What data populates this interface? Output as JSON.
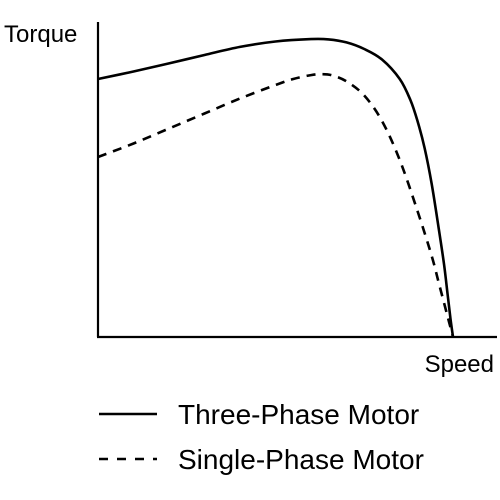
{
  "chart_data": {
    "type": "line",
    "title": "",
    "xlabel": "Speed",
    "ylabel": "Torque",
    "xlim": [
      0,
      100
    ],
    "ylim": [
      0,
      100
    ],
    "grid": false,
    "legend_position": "bottom",
    "series": [
      {
        "name": "Three-Phase Motor",
        "style": "solid",
        "color": "#000000",
        "x": [
          0,
          10,
          20,
          30,
          40,
          50,
          60,
          65,
          70,
          75,
          80,
          85,
          88,
          90,
          92,
          94,
          96,
          97.5,
          98.5,
          99.3,
          100
        ],
        "y": [
          86,
          88.5,
          91.2,
          94,
          96.7,
          98.5,
          99.3,
          99.2,
          98.2,
          96,
          92.5,
          86,
          79,
          72,
          63,
          51,
          36,
          24,
          14,
          6,
          0
        ]
      },
      {
        "name": "Single-Phase Motor",
        "style": "dashed",
        "color": "#000000",
        "x": [
          0,
          10,
          20,
          30,
          40,
          50,
          55,
          60,
          63,
          66,
          70,
          75,
          80,
          85,
          90,
          94,
          96,
          98,
          99,
          100
        ],
        "y": [
          60,
          64.5,
          69.5,
          74.5,
          79.5,
          84,
          86,
          87.3,
          87.6,
          87.2,
          85.2,
          80.5,
          72,
          59,
          42,
          27,
          18,
          9,
          4.5,
          0
        ]
      }
    ]
  }
}
